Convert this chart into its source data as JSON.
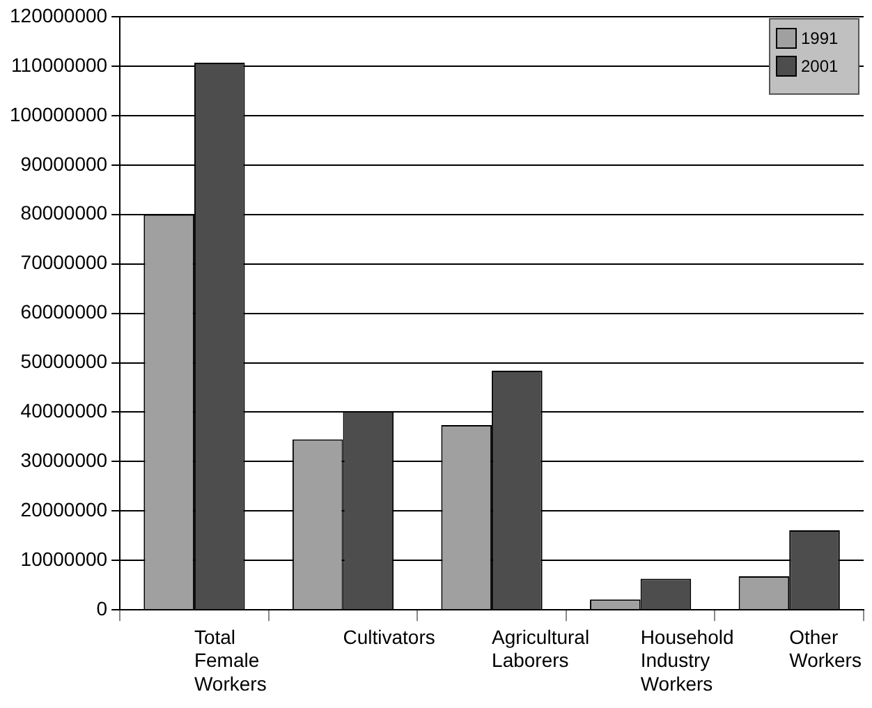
{
  "chart_data": {
    "type": "bar",
    "categories": [
      "Total Female Workers",
      "Cultivators",
      "Agricultural Laborers",
      "Household Industry Workers",
      "Other Workers"
    ],
    "series": [
      {
        "name": "1991",
        "color": "#a0a0a0",
        "values": [
          80000000,
          34500000,
          37400000,
          2100000,
          6800000
        ]
      },
      {
        "name": "2001",
        "color": "#4d4d4d",
        "values": [
          110700000,
          40200000,
          48400000,
          6300000,
          16100000
        ]
      }
    ],
    "ylim": [
      0,
      120000000
    ],
    "yticks": [
      0,
      10000000,
      20000000,
      30000000,
      40000000,
      50000000,
      60000000,
      70000000,
      80000000,
      90000000,
      100000000,
      110000000,
      120000000
    ],
    "grid": "y",
    "legend": "top right"
  }
}
